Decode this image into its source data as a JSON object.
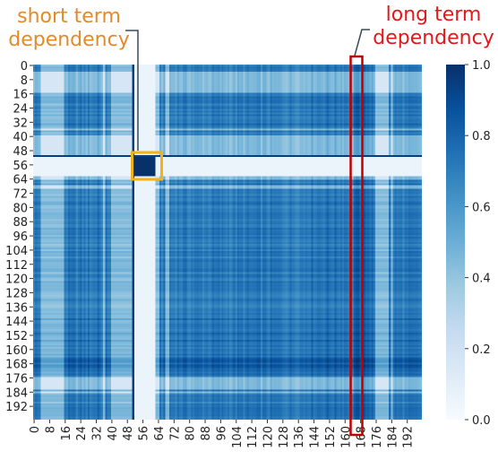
{
  "chart_data": {
    "type": "heatmap",
    "title": "",
    "xlabel": "",
    "ylabel": "",
    "n": 200,
    "x_tick_labels": [
      "0",
      "8",
      "16",
      "24",
      "32",
      "40",
      "48",
      "56",
      "64",
      "72",
      "80",
      "88",
      "96",
      "104",
      "112",
      "120",
      "128",
      "136",
      "144",
      "152",
      "160",
      "168",
      "176",
      "184",
      "192"
    ],
    "y_tick_labels": [
      "0",
      "8",
      "16",
      "24",
      "32",
      "40",
      "48",
      "56",
      "64",
      "72",
      "80",
      "88",
      "96",
      "104",
      "112",
      "120",
      "128",
      "136",
      "144",
      "152",
      "160",
      "168",
      "176",
      "184",
      "192"
    ],
    "colorbar": {
      "min": 0.0,
      "max": 1.0,
      "tick_labels": [
        "0.0",
        "0.2",
        "0.4",
        "0.6",
        "0.8",
        "1.0"
      ],
      "colormap": "Blues"
    },
    "value_scale": [
      0,
      1
    ],
    "low_value_indices": [
      4,
      5,
      6,
      7,
      8,
      9,
      10,
      11,
      12,
      13,
      14,
      15,
      36,
      40,
      41,
      42,
      43,
      44,
      45,
      46,
      47,
      48,
      49,
      50,
      51,
      53,
      54,
      55,
      56,
      57,
      58,
      59,
      60,
      61,
      62,
      63,
      64,
      68,
      69,
      176,
      177,
      178,
      179,
      180,
      181,
      182,
      184
    ],
    "high_block": {
      "start": 52,
      "end": 62,
      "value": 1.0
    },
    "annotations": [
      {
        "id": "short",
        "text": [
          "short term",
          "dependency"
        ],
        "color": "#e38a2b",
        "box_rows": [
          52,
          62
        ],
        "box_cols": [
          52,
          62
        ]
      },
      {
        "id": "long",
        "text": [
          "long term",
          "dependency"
        ],
        "color": "#e01a1a",
        "box_cols": [
          164,
          167
        ],
        "box_rows": [
          0,
          199
        ]
      }
    ]
  }
}
